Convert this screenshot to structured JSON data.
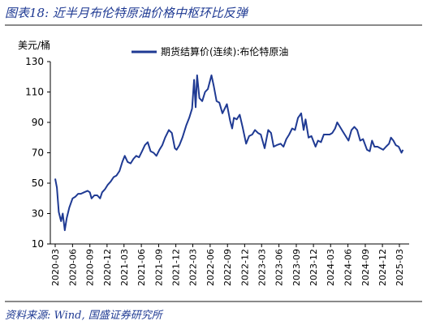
{
  "figure": {
    "title": "图表18:  近半月布伦特原油价格中枢环比反弹",
    "source": "资料来源: Wind, 国盛证券研究所"
  },
  "colors": {
    "line": "#1f3a93",
    "accent": "#1f3a93",
    "rule": "#8a8a8a"
  },
  "chart_data": {
    "type": "line",
    "title": "",
    "ylabel": "美元/桶",
    "xlabel": "",
    "ylim": [
      10,
      130
    ],
    "yticks": [
      10,
      30,
      50,
      70,
      90,
      110,
      130
    ],
    "xticks": [
      "2020-03",
      "2020-06",
      "2020-09",
      "2020-12",
      "2021-03",
      "2021-06",
      "2021-09",
      "2021-12",
      "2022-03",
      "2022-06",
      "2022-09",
      "2022-12",
      "2023-03",
      "2023-06",
      "2023-09",
      "2023-12",
      "2024-03",
      "2024-06",
      "2024-09",
      "2024-12",
      "2025-03"
    ],
    "grid": false,
    "legend": "top-right",
    "series": [
      {
        "name": "期货结算价(连续):布伦特原油",
        "x": [
          "2020-03-01",
          "2020-03-10",
          "2020-03-20",
          "2020-04-01",
          "2020-04-10",
          "2020-04-21",
          "2020-05-01",
          "2020-05-15",
          "2020-06-01",
          "2020-06-15",
          "2020-07-01",
          "2020-07-15",
          "2020-08-01",
          "2020-08-20",
          "2020-09-01",
          "2020-09-10",
          "2020-09-25",
          "2020-10-10",
          "2020-10-25",
          "2020-11-05",
          "2020-11-20",
          "2020-12-05",
          "2020-12-20",
          "2021-01-05",
          "2021-01-20",
          "2021-02-05",
          "2021-02-20",
          "2021-03-05",
          "2021-03-20",
          "2021-04-05",
          "2021-04-20",
          "2021-05-05",
          "2021-05-20",
          "2021-06-05",
          "2021-06-20",
          "2021-07-05",
          "2021-07-20",
          "2021-08-05",
          "2021-08-20",
          "2021-09-05",
          "2021-09-20",
          "2021-10-05",
          "2021-10-25",
          "2021-11-10",
          "2021-11-26",
          "2021-12-05",
          "2021-12-20",
          "2022-01-05",
          "2022-01-25",
          "2022-02-10",
          "2022-02-25",
          "2022-03-08",
          "2022-03-16",
          "2022-03-24",
          "2022-04-05",
          "2022-04-20",
          "2022-05-05",
          "2022-05-20",
          "2022-06-08",
          "2022-06-20",
          "2022-07-05",
          "2022-07-20",
          "2022-08-05",
          "2022-08-29",
          "2022-09-15",
          "2022-09-26",
          "2022-10-05",
          "2022-10-20",
          "2022-11-05",
          "2022-11-20",
          "2022-12-09",
          "2022-12-25",
          "2023-01-10",
          "2023-01-25",
          "2023-02-10",
          "2023-02-25",
          "2023-03-17",
          "2023-04-05",
          "2023-04-20",
          "2023-05-04",
          "2023-05-20",
          "2023-06-10",
          "2023-06-25",
          "2023-07-10",
          "2023-07-25",
          "2023-08-10",
          "2023-08-25",
          "2023-09-10",
          "2023-09-27",
          "2023-10-10",
          "2023-10-20",
          "2023-11-05",
          "2023-11-20",
          "2023-12-12",
          "2023-12-25",
          "2024-01-10",
          "2024-01-25",
          "2024-02-10",
          "2024-02-25",
          "2024-03-10",
          "2024-03-25",
          "2024-04-05",
          "2024-04-20",
          "2024-05-05",
          "2024-05-20",
          "2024-06-04",
          "2024-06-20",
          "2024-07-05",
          "2024-07-20",
          "2024-08-05",
          "2024-08-20",
          "2024-09-10",
          "2024-09-25",
          "2024-10-07",
          "2024-10-20",
          "2024-11-05",
          "2024-11-20",
          "2024-12-05",
          "2024-12-20",
          "2025-01-05",
          "2025-01-15",
          "2025-01-28",
          "2025-02-10",
          "2025-02-25",
          "2025-03-05",
          "2025-03-12",
          "2025-03-20"
        ],
        "values": [
          53,
          47,
          31,
          25,
          30,
          19,
          27,
          34,
          40,
          41,
          43,
          43,
          44,
          45,
          44,
          40,
          42,
          42,
          40,
          44,
          46,
          49,
          51,
          54,
          55,
          58,
          64,
          68,
          64,
          63,
          66,
          68,
          67,
          71,
          75,
          77,
          71,
          70,
          68,
          72,
          75,
          80,
          85,
          83,
          73,
          72,
          75,
          80,
          88,
          93,
          99,
          118,
          100,
          121,
          106,
          104,
          110,
          112,
          121,
          114,
          104,
          103,
          96,
          102,
          91,
          86,
          93,
          92,
          95,
          87,
          76,
          81,
          82,
          85,
          83,
          82,
          73,
          85,
          83,
          74,
          75,
          76,
          74,
          79,
          82,
          86,
          85,
          93,
          96,
          85,
          92,
          80,
          81,
          74,
          78,
          77,
          82,
          82,
          82,
          83,
          86,
          90,
          87,
          84,
          81,
          78,
          85,
          87,
          85,
          78,
          79,
          72,
          71,
          78,
          74,
          74,
          73,
          72,
          74,
          76,
          80,
          78,
          75,
          74,
          72,
          70,
          72
        ]
      }
    ]
  }
}
